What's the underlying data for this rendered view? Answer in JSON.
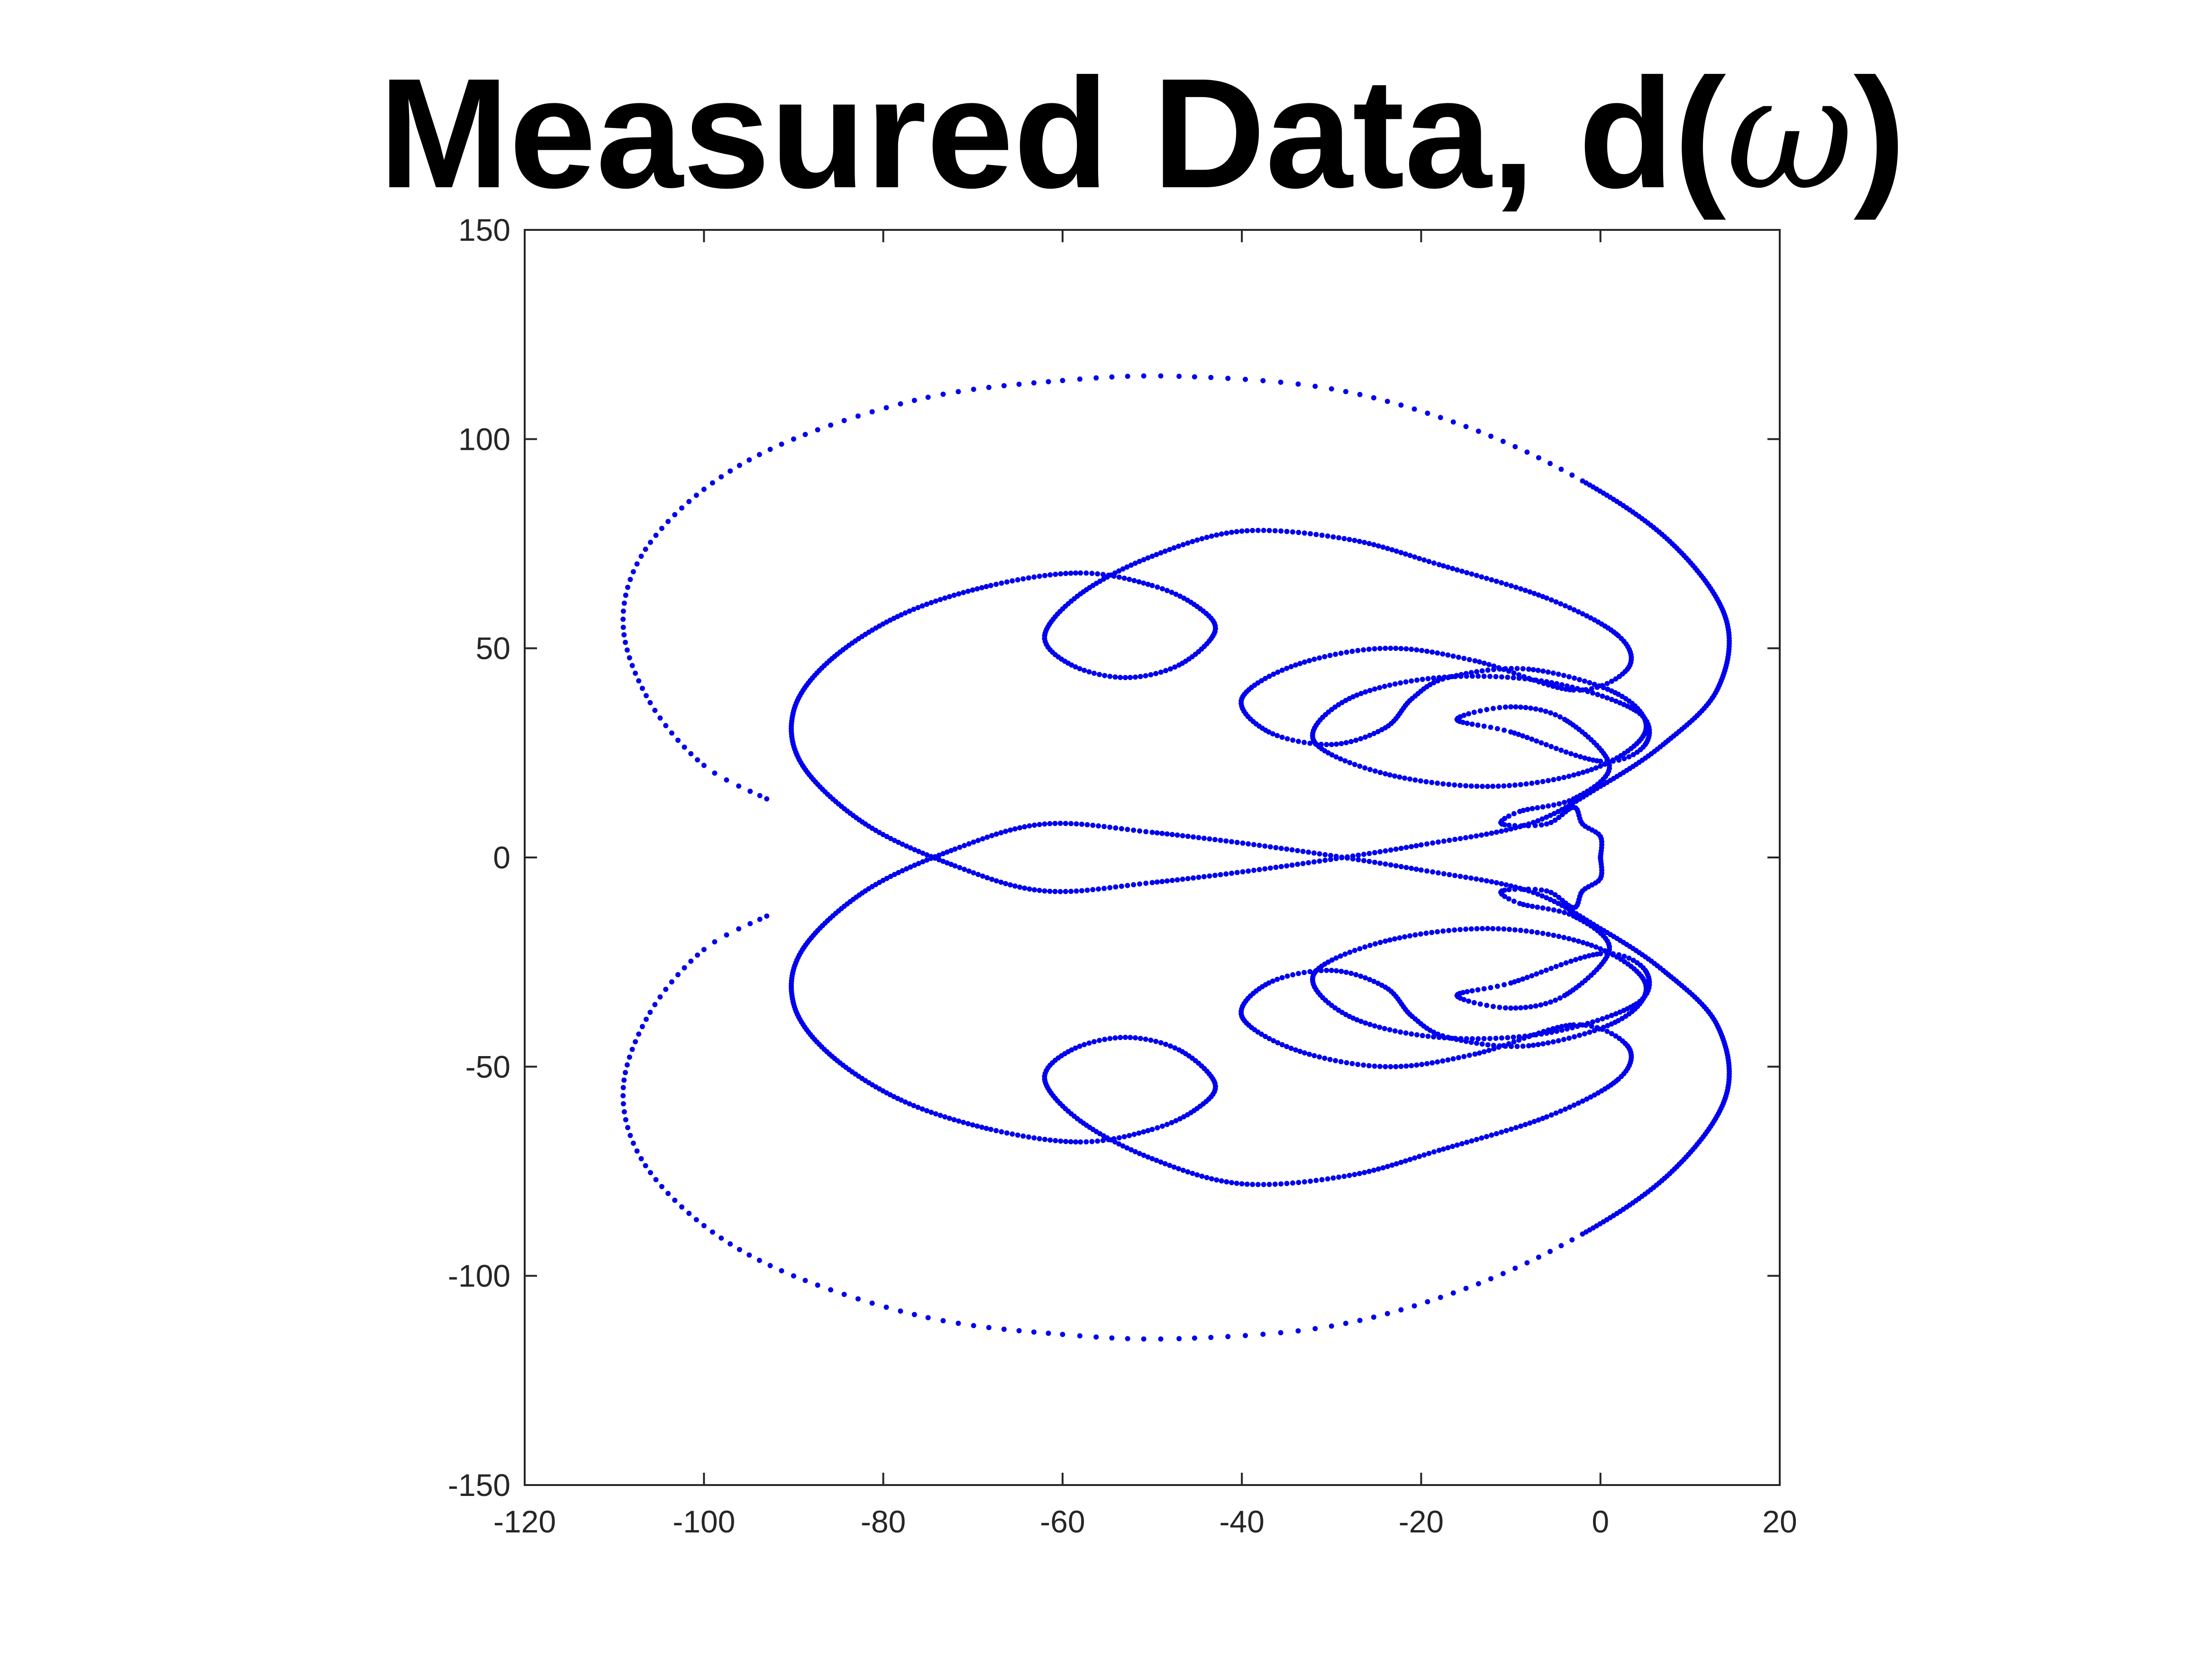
{
  "title": {
    "main": "Measured Data, d(",
    "symbol": "ω",
    "close": ")"
  },
  "chart_data": {
    "type": "scatter",
    "title": "Measured Data, d(ω)",
    "xlabel": "",
    "ylabel": "",
    "xlim": [
      -120,
      20
    ],
    "ylim": [
      -150,
      150
    ],
    "xticks": [
      -120,
      -100,
      -80,
      -60,
      -40,
      -20,
      0,
      20
    ],
    "yticks": [
      -150,
      -100,
      -50,
      0,
      50,
      100,
      150
    ],
    "xtick_labels": [
      "-120",
      "-100",
      "-80",
      "-60",
      "-40",
      "-20",
      "0",
      "20"
    ],
    "ytick_labels": [
      "-150",
      "-100",
      "-50",
      "0",
      "50",
      "100",
      "150"
    ],
    "grid": false,
    "marker_color": "#0000ee",
    "symmetry": "conjugate (mirror about y = 0)",
    "series": [
      {
        "values": [
          {
            "x": -93,
            "y": 14
          },
          {
            "x": -100,
            "y": 22
          },
          {
            "x": -106,
            "y": 37
          },
          {
            "x": -109,
            "y": 55
          },
          {
            "x": -107,
            "y": 72
          },
          {
            "x": -100,
            "y": 88
          },
          {
            "x": -90,
            "y": 100
          },
          {
            "x": -75,
            "y": 110
          },
          {
            "x": -60,
            "y": 114
          },
          {
            "x": -47,
            "y": 115
          },
          {
            "x": -30,
            "y": 112
          },
          {
            "x": -15,
            "y": 103
          },
          {
            "x": -2,
            "y": 90
          },
          {
            "x": 8,
            "y": 75
          },
          {
            "x": 14,
            "y": 57
          },
          {
            "x": 13,
            "y": 40
          },
          {
            "x": 7,
            "y": 27
          },
          {
            "x": 0,
            "y": 17
          },
          {
            "x": -8,
            "y": 8
          },
          {
            "x": -20,
            "y": 3
          },
          {
            "x": -35,
            "y": -2
          },
          {
            "x": -50,
            "y": -6
          },
          {
            "x": -62,
            "y": -8
          },
          {
            "x": -72,
            "y": -2
          },
          {
            "x": -82,
            "y": 8
          },
          {
            "x": -89,
            "y": 22
          },
          {
            "x": -90,
            "y": 35
          },
          {
            "x": -86,
            "y": 47
          },
          {
            "x": -78,
            "y": 58
          },
          {
            "x": -68,
            "y": 65
          },
          {
            "x": -58,
            "y": 68
          },
          {
            "x": -50,
            "y": 65
          },
          {
            "x": -45,
            "y": 60
          },
          {
            "x": -43,
            "y": 54
          },
          {
            "x": -47,
            "y": 46
          },
          {
            "x": -53,
            "y": 43
          },
          {
            "x": -59,
            "y": 46
          },
          {
            "x": -62,
            "y": 53
          },
          {
            "x": -58,
            "y": 63
          },
          {
            "x": -50,
            "y": 72
          },
          {
            "x": -40,
            "y": 78
          },
          {
            "x": -28,
            "y": 76
          },
          {
            "x": -18,
            "y": 70
          },
          {
            "x": -6,
            "y": 62
          },
          {
            "x": 2,
            "y": 53
          },
          {
            "x": 3,
            "y": 45
          },
          {
            "x": -3,
            "y": 40
          },
          {
            "x": -14,
            "y": 47
          },
          {
            "x": -24,
            "y": 50
          },
          {
            "x": -34,
            "y": 46
          },
          {
            "x": -40,
            "y": 38
          },
          {
            "x": -37,
            "y": 30
          },
          {
            "x": -30,
            "y": 27
          },
          {
            "x": -24,
            "y": 31
          },
          {
            "x": -21,
            "y": 38
          },
          {
            "x": -17,
            "y": 43
          },
          {
            "x": -8,
            "y": 45
          },
          {
            "x": 2,
            "y": 39
          },
          {
            "x": 5,
            "y": 30
          },
          {
            "x": -1,
            "y": 21
          },
          {
            "x": -12,
            "y": 17
          },
          {
            "x": -24,
            "y": 20
          },
          {
            "x": -32,
            "y": 28
          },
          {
            "x": -28,
            "y": 38
          },
          {
            "x": -18,
            "y": 43
          },
          {
            "x": -6,
            "y": 42
          },
          {
            "x": 4,
            "y": 35
          },
          {
            "x": 5,
            "y": 27
          },
          {
            "x": 0,
            "y": 23
          },
          {
            "x": -10,
            "y": 30
          },
          {
            "x": -16,
            "y": 33
          },
          {
            "x": -10,
            "y": 36
          },
          {
            "x": -4,
            "y": 33
          },
          {
            "x": 1,
            "y": 22
          },
          {
            "x": -3,
            "y": 14
          },
          {
            "x": -9,
            "y": 11
          },
          {
            "x": -11,
            "y": 8
          },
          {
            "x": -6,
            "y": 8
          },
          {
            "x": -3,
            "y": 12
          },
          {
            "x": -2,
            "y": 8
          },
          {
            "x": 0,
            "y": 5
          },
          {
            "x": 0,
            "y": 0
          }
        ]
      }
    ]
  }
}
